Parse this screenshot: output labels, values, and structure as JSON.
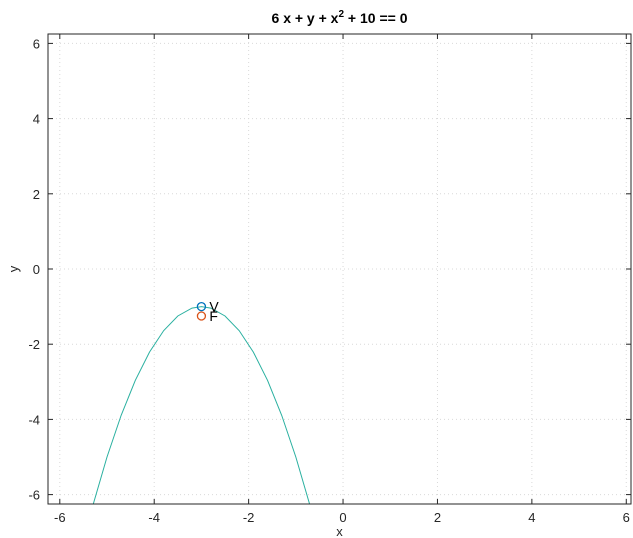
{
  "chart_data": {
    "type": "line",
    "title_parts": [
      "6  x + y + x",
      "2",
      " + 10 == 0"
    ],
    "xlabel": "x",
    "ylabel": "y",
    "xlim": [
      -6.25,
      6.1
    ],
    "ylim": [
      -6.25,
      6.25
    ],
    "x_ticks": [
      -6,
      -4,
      -2,
      0,
      2,
      4,
      6
    ],
    "y_ticks": [
      -6,
      -4,
      -2,
      0,
      2,
      4,
      6
    ],
    "grid": true,
    "series": [
      {
        "equation": "y = -(x^2 + 6x + 10)",
        "color": "#2ab0a0",
        "x": [
          -5.3,
          -5.0,
          -4.7,
          -4.4,
          -4.1,
          -3.8,
          -3.5,
          -3.2,
          -3.0,
          -2.8,
          -2.5,
          -2.2,
          -1.9,
          -1.6,
          -1.3,
          -1.0,
          -0.7
        ],
        "y": [
          -6.29,
          -5.0,
          -3.89,
          -2.96,
          -2.21,
          -1.64,
          -1.25,
          -1.04,
          -1.0,
          -1.04,
          -1.25,
          -1.64,
          -2.21,
          -2.96,
          -3.89,
          -5.0,
          -6.29
        ]
      }
    ],
    "points": [
      {
        "label": "V",
        "x": -3,
        "y": -1,
        "color": "#0072bd"
      },
      {
        "label": "F",
        "x": -3,
        "y": -1.25,
        "color": "#d95319"
      }
    ]
  }
}
